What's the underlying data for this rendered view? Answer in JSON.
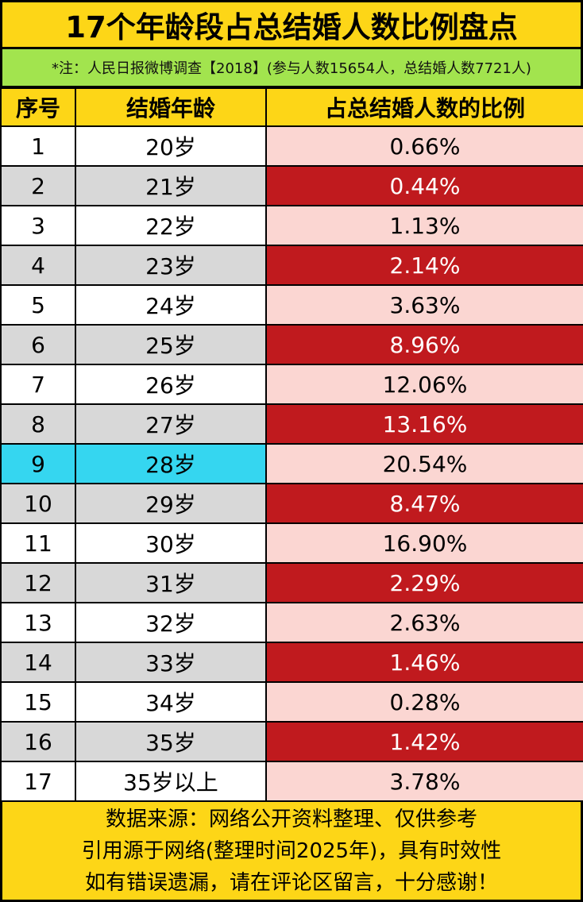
{
  "title": "17个年龄段占总结婚人数比例盘点",
  "note": "*注：人民日报微博调查【2018】(参与人数15654人，总结婚人数7721人)",
  "headers": {
    "index": "序号",
    "age": "结婚年龄",
    "ratio": "占总结婚人数的比例"
  },
  "rows": [
    {
      "index": "1",
      "age": "20岁",
      "ratio": "0.66%"
    },
    {
      "index": "2",
      "age": "21岁",
      "ratio": "0.44%"
    },
    {
      "index": "3",
      "age": "22岁",
      "ratio": "1.13%"
    },
    {
      "index": "4",
      "age": "23岁",
      "ratio": "2.14%"
    },
    {
      "index": "5",
      "age": "24岁",
      "ratio": "3.63%"
    },
    {
      "index": "6",
      "age": "25岁",
      "ratio": "8.96%"
    },
    {
      "index": "7",
      "age": "26岁",
      "ratio": "12.06%"
    },
    {
      "index": "8",
      "age": "27岁",
      "ratio": "13.16%"
    },
    {
      "index": "9",
      "age": "28岁",
      "ratio": "20.54%"
    },
    {
      "index": "10",
      "age": "29岁",
      "ratio": "8.47%"
    },
    {
      "index": "11",
      "age": "30岁",
      "ratio": "16.90%"
    },
    {
      "index": "12",
      "age": "31岁",
      "ratio": "2.29%"
    },
    {
      "index": "13",
      "age": "32岁",
      "ratio": "2.63%"
    },
    {
      "index": "14",
      "age": "33岁",
      "ratio": "1.46%"
    },
    {
      "index": "15",
      "age": "34岁",
      "ratio": "0.28%"
    },
    {
      "index": "16",
      "age": "35岁",
      "ratio": "1.42%"
    },
    {
      "index": "17",
      "age": "35岁以上",
      "ratio": "3.78%"
    }
  ],
  "highlight_row_index": "9",
  "footer": {
    "line1": "数据来源：网络公开资料整理、仅供参考",
    "line2": "引用源于网络(整理时间2025年)，具有时效性",
    "line3": "如有错误遗漏，请在评论区留言，十分感谢！"
  },
  "colors": {
    "title_bg": "#fdd617",
    "note_bg": "#a2e44e",
    "header_bg": "#fdd617",
    "pct_light": "#fbd6d2",
    "pct_dark": "#c01a1e",
    "row_gray": "#d8d8d8",
    "highlight": "#35d6f0"
  }
}
